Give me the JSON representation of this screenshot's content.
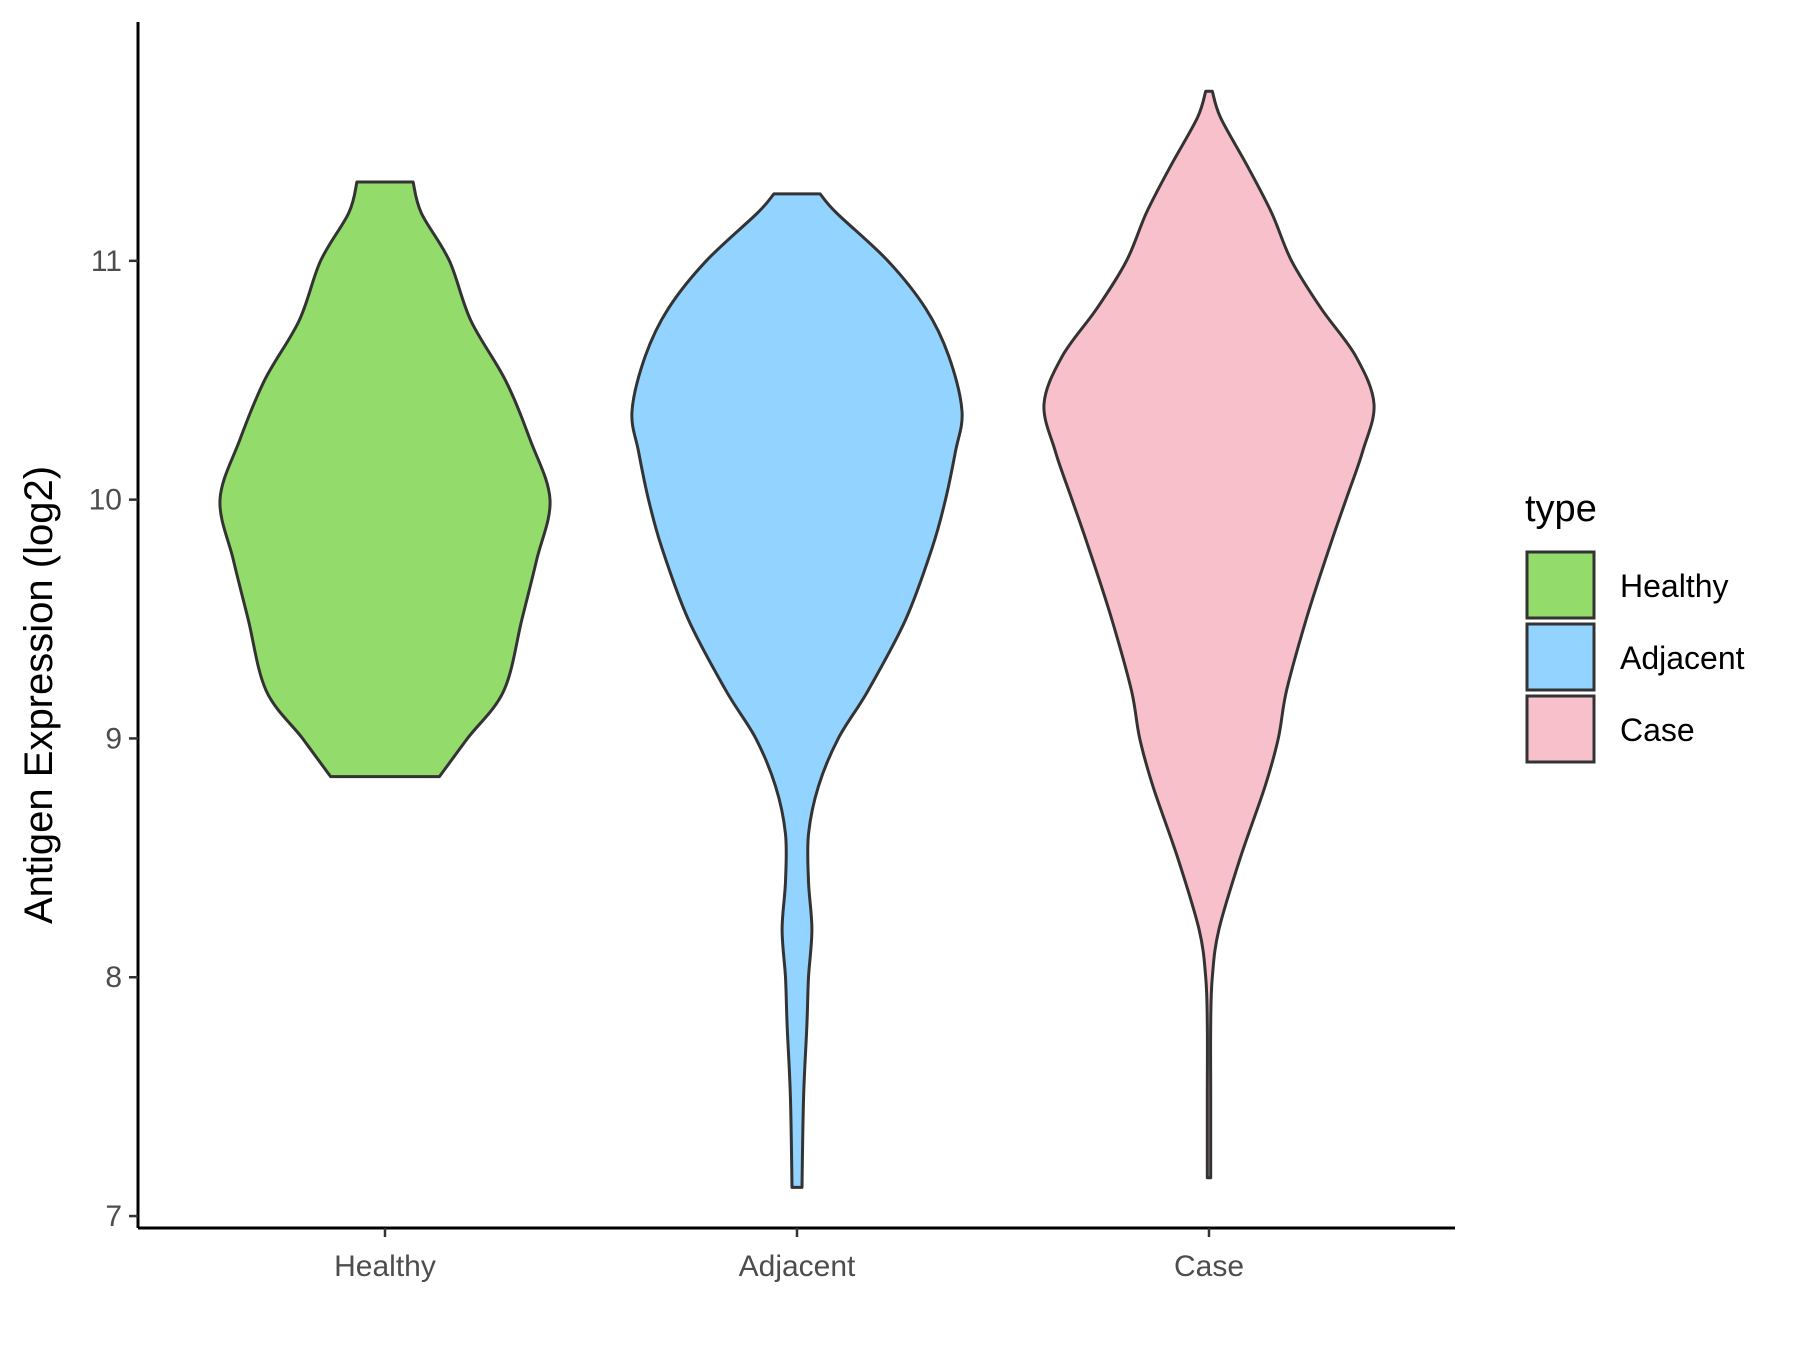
{
  "chart_data": {
    "type": "violin",
    "ylabel": "Antigen Expression (log2)",
    "xlabel": "",
    "categories": [
      "Healthy",
      "Adjacent",
      "Case"
    ],
    "ylim": [
      6.95,
      12.0
    ],
    "yticks": [
      7,
      8,
      9,
      10,
      11
    ],
    "legend": {
      "title": "type",
      "placement": "right",
      "entries": [
        "Healthy",
        "Adjacent",
        "Case"
      ]
    },
    "colors": {
      "Healthy": "#93DB6B",
      "Adjacent": "#93D3FF",
      "Case": "#F8C0CB"
    },
    "series": [
      {
        "category": "Healthy",
        "min": 8.84,
        "max": 11.33,
        "profile": [
          [
            8.84,
            0.33
          ],
          [
            9.0,
            0.5
          ],
          [
            9.2,
            0.72
          ],
          [
            9.5,
            0.83
          ],
          [
            9.75,
            0.92
          ],
          [
            10.0,
            1.0
          ],
          [
            10.25,
            0.88
          ],
          [
            10.5,
            0.73
          ],
          [
            10.75,
            0.52
          ],
          [
            11.0,
            0.39
          ],
          [
            11.2,
            0.22
          ],
          [
            11.33,
            0.17
          ]
        ]
      },
      {
        "category": "Adjacent",
        "min": 7.12,
        "max": 11.28,
        "profile": [
          [
            7.12,
            0.03
          ],
          [
            7.5,
            0.04
          ],
          [
            7.8,
            0.06
          ],
          [
            8.0,
            0.07
          ],
          [
            8.2,
            0.09
          ],
          [
            8.4,
            0.07
          ],
          [
            8.6,
            0.07
          ],
          [
            8.8,
            0.13
          ],
          [
            9.0,
            0.25
          ],
          [
            9.2,
            0.43
          ],
          [
            9.5,
            0.66
          ],
          [
            9.8,
            0.82
          ],
          [
            10.0,
            0.9
          ],
          [
            10.2,
            0.96
          ],
          [
            10.37,
            1.0
          ],
          [
            10.6,
            0.92
          ],
          [
            10.8,
            0.78
          ],
          [
            11.0,
            0.55
          ],
          [
            11.2,
            0.24
          ],
          [
            11.28,
            0.14
          ]
        ]
      },
      {
        "category": "Case",
        "min": 7.16,
        "max": 11.71,
        "profile": [
          [
            7.16,
            0.01
          ],
          [
            7.5,
            0.01
          ],
          [
            7.8,
            0.01
          ],
          [
            8.0,
            0.02
          ],
          [
            8.2,
            0.06
          ],
          [
            8.5,
            0.19
          ],
          [
            8.8,
            0.34
          ],
          [
            9.0,
            0.42
          ],
          [
            9.2,
            0.47
          ],
          [
            9.5,
            0.59
          ],
          [
            9.8,
            0.73
          ],
          [
            10.0,
            0.83
          ],
          [
            10.2,
            0.93
          ],
          [
            10.4,
            1.0
          ],
          [
            10.6,
            0.89
          ],
          [
            10.8,
            0.68
          ],
          [
            11.0,
            0.5
          ],
          [
            11.2,
            0.38
          ],
          [
            11.4,
            0.23
          ],
          [
            11.6,
            0.07
          ],
          [
            11.71,
            0.02
          ]
        ]
      }
    ]
  }
}
